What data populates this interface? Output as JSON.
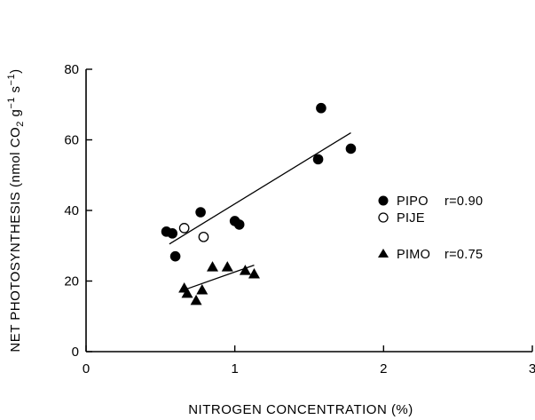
{
  "chart_data": {
    "type": "scatter",
    "xlabel": "NITROGEN CONCENTRATION  (%)",
    "ylabel_main": "NET PHOTOSYNTHESIS  (nmol CO",
    "ylabel_sub2": "2",
    "ylabel_g": " g",
    "ylabel_sup1": "−1",
    "ylabel_s": " s",
    "ylabel_sup2": "−1",
    "ylabel_close": ")",
    "xlim": [
      0,
      3
    ],
    "ylim": [
      0,
      80
    ],
    "x_ticks": [
      0,
      1,
      2,
      3
    ],
    "y_ticks": [
      0,
      20,
      40,
      60,
      80
    ],
    "x_tick_labels": [
      "0",
      "1",
      "2",
      "3"
    ],
    "y_tick_labels": [
      "0",
      "20",
      "40",
      "60",
      "80"
    ],
    "series": [
      {
        "name": "PIPO",
        "r_label": "r=0.90",
        "marker": "filled-circle",
        "points": [
          [
            0.54,
            34
          ],
          [
            0.58,
            33.5
          ],
          [
            0.6,
            27
          ],
          [
            0.77,
            39.5
          ],
          [
            1.0,
            37
          ],
          [
            1.03,
            36
          ],
          [
            1.56,
            54.5
          ],
          [
            1.58,
            69
          ],
          [
            1.78,
            57.5
          ]
        ],
        "fit": [
          [
            0.56,
            30.5
          ],
          [
            1.78,
            62
          ]
        ]
      },
      {
        "name": "PIJE",
        "r_label": "",
        "marker": "open-circle",
        "points": [
          [
            0.66,
            35
          ],
          [
            0.79,
            32.5
          ]
        ]
      },
      {
        "name": "PIMO",
        "r_label": "r=0.75",
        "marker": "filled-triangle",
        "points": [
          [
            0.66,
            18
          ],
          [
            0.68,
            16.5
          ],
          [
            0.74,
            14.5
          ],
          [
            0.78,
            17.5
          ],
          [
            0.85,
            24
          ],
          [
            0.95,
            24
          ],
          [
            1.07,
            23
          ],
          [
            1.13,
            22
          ]
        ],
        "fit": [
          [
            0.66,
            17.5
          ],
          [
            1.13,
            24.5
          ]
        ]
      }
    ],
    "legend_position": "right",
    "grid": false
  }
}
